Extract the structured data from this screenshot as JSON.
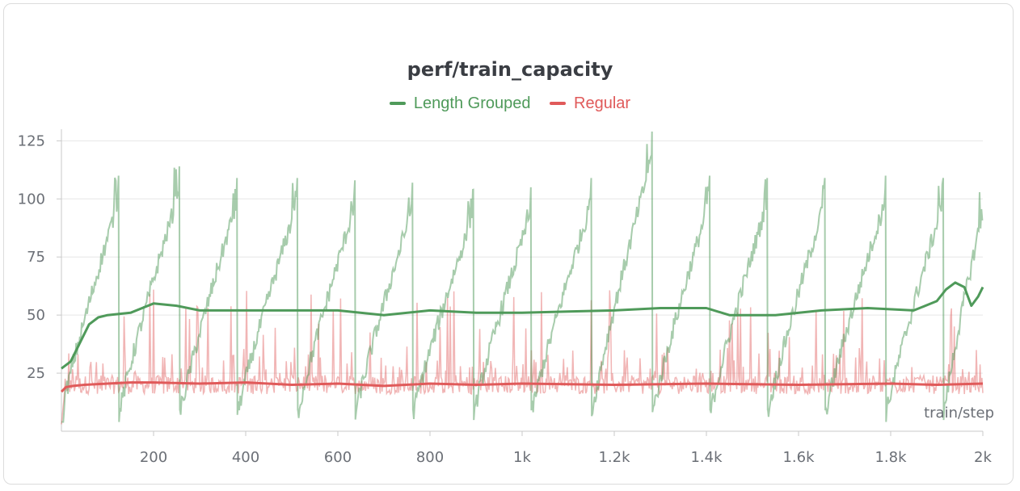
{
  "chart_data": {
    "type": "line",
    "title": "perf/train_capacity",
    "xlabel": "train/step",
    "ylabel": "",
    "xlim": [
      0,
      2000
    ],
    "ylim": [
      0,
      130
    ],
    "x_ticks": [
      200,
      400,
      600,
      800,
      1000,
      1200,
      1400,
      1600,
      1800,
      2000
    ],
    "x_tick_labels": [
      "200",
      "400",
      "600",
      "800",
      "1k",
      "1.2k",
      "1.4k",
      "1.6k",
      "1.8k",
      "2k"
    ],
    "y_ticks": [
      25,
      50,
      75,
      100,
      125
    ],
    "y_tick_labels": [
      "25",
      "50",
      "75",
      "100",
      "125"
    ],
    "grid": "horizontal",
    "legend_position": "top",
    "series": [
      {
        "name": "Length Grouped",
        "color": "#4f9a5a",
        "raw_pattern": "sawtooth",
        "raw_cycle_starts": [
          0,
          125,
          257,
          382,
          513,
          638,
          763,
          895,
          1020,
          1151,
          1283,
          1408,
          1533,
          1658,
          1790,
          1915
        ],
        "raw_cycle_peaks": [
          110,
          114,
          109,
          109,
          108,
          107,
          104,
          105,
          109,
          129,
          110,
          109,
          109,
          110,
          109,
          105
        ],
        "raw_cycle_min": 7,
        "smoothed": {
          "x": [
            0,
            20,
            40,
            60,
            80,
            100,
            150,
            200,
            250,
            300,
            400,
            500,
            600,
            700,
            800,
            900,
            1000,
            1100,
            1200,
            1300,
            1400,
            1450,
            1550,
            1650,
            1750,
            1850,
            1900,
            1920,
            1940,
            1960,
            1975,
            1990,
            2000
          ],
          "y": [
            27,
            30,
            38,
            46,
            49,
            50,
            51,
            55,
            54,
            52,
            52,
            52,
            52,
            50,
            52,
            51,
            51,
            51.5,
            52,
            53,
            53,
            50,
            50,
            52,
            53,
            52,
            56,
            61,
            64,
            62,
            54,
            58,
            62
          ]
        }
      },
      {
        "name": "Regular",
        "color": "#e05a5a",
        "raw_pattern": "noisy",
        "raw_baseline": 20,
        "raw_min": 14,
        "raw_max": 62,
        "smoothed": {
          "x": [
            0,
            10,
            25,
            50,
            100,
            150,
            200,
            300,
            400,
            500,
            600,
            700,
            800,
            900,
            1000,
            1200,
            1400,
            1600,
            1800,
            1900,
            2000
          ],
          "y": [
            17,
            19,
            19.5,
            20,
            20.5,
            21,
            21,
            20.5,
            21,
            20,
            20.5,
            19.5,
            20.5,
            20,
            20.5,
            20,
            20.5,
            20,
            20.5,
            20,
            20.5
          ]
        }
      }
    ]
  }
}
